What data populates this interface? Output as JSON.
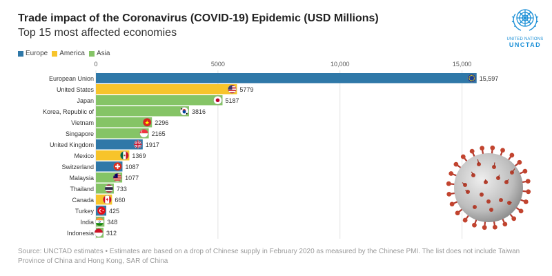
{
  "header": {
    "title": "Trade impact of the Coronavirus (COVID-19) Epidemic (USD Millions)",
    "subtitle": "Top 15 most affected economies"
  },
  "logo": {
    "line1": "UNITED NATIONS",
    "line2": "UNCTAD",
    "color": "#1a8fd6"
  },
  "legend": [
    {
      "label": "Europe",
      "color": "#2f78a8"
    },
    {
      "label": "America",
      "color": "#f7c42b"
    },
    {
      "label": "Asia",
      "color": "#85c466"
    }
  ],
  "chart_data": {
    "type": "bar",
    "orientation": "horizontal",
    "xlim": [
      0,
      16000
    ],
    "ticks": [
      {
        "value": 0,
        "label": "0"
      },
      {
        "value": 5000,
        "label": "5000"
      },
      {
        "value": 10000,
        "label": "10,000"
      },
      {
        "value": 15000,
        "label": "15,000"
      }
    ],
    "categories": [
      "European Union",
      "United States",
      "Japan",
      "Korea, Republic of",
      "Vietnam",
      "Singapore",
      "United Kingdom",
      "Mexico",
      "Switzerland",
      "Malaysia",
      "Thailand",
      "Canada",
      "Turkey",
      "India",
      "Indonesia"
    ],
    "values": [
      15597,
      5779,
      5187,
      3816,
      2296,
      2165,
      1917,
      1369,
      1087,
      1077,
      733,
      660,
      425,
      348,
      312
    ],
    "value_labels": [
      "15,597",
      "5779",
      "5187",
      "3816",
      "2296",
      "2165",
      "1917",
      "1369",
      "1087",
      "1077",
      "733",
      "660",
      "425",
      "348",
      "312"
    ],
    "regions": [
      "Europe",
      "America",
      "Asia",
      "Asia",
      "Asia",
      "Asia",
      "Europe",
      "America",
      "Europe",
      "Asia",
      "Asia",
      "America",
      "Europe",
      "Asia",
      "Asia"
    ],
    "flag_icons": [
      "eu-flag-icon",
      "us-flag-icon",
      "japan-flag-icon",
      "south-korea-flag-icon",
      "vietnam-flag-icon",
      "singapore-flag-icon",
      "uk-flag-icon",
      "mexico-flag-icon",
      "switzerland-flag-icon",
      "malaysia-flag-icon",
      "thailand-flag-icon",
      "canada-flag-icon",
      "turkey-flag-icon",
      "india-flag-icon",
      "indonesia-flag-icon"
    ],
    "grid": true,
    "legend_position": "top-left"
  },
  "source": "Source: UNCTAD estimates • Estimates are based on a drop of Chinese supply in February 2020 as measured by the Chinese PMI. The list does not include Taiwan Province of China and Hong Kong, SAR of China"
}
